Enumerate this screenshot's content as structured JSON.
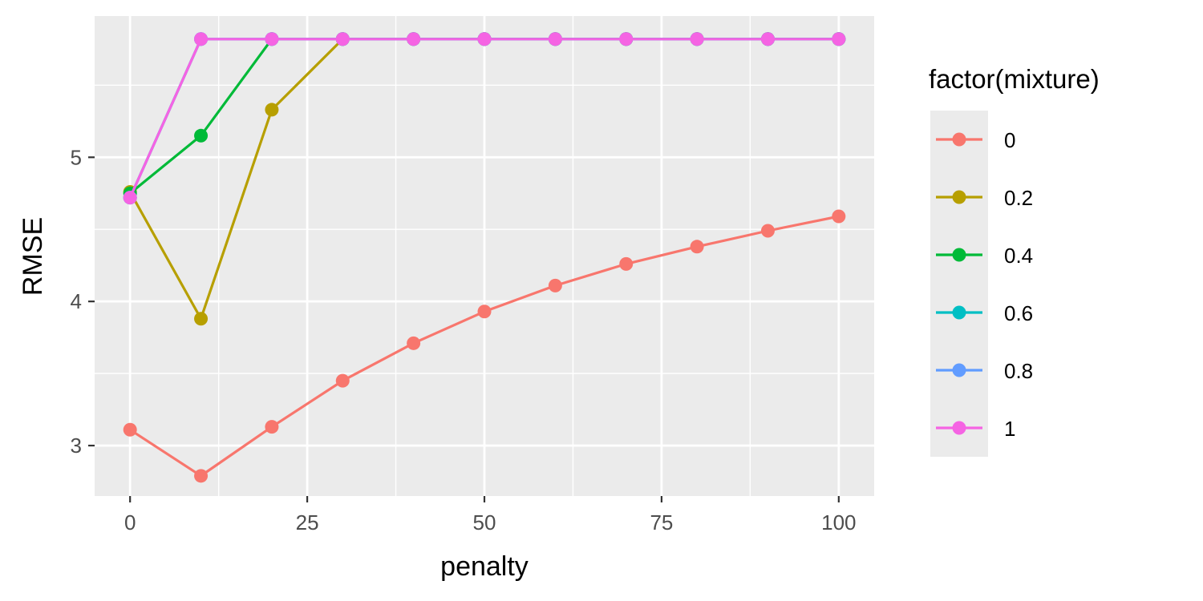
{
  "chart_data": {
    "type": "line",
    "title": "",
    "xlabel": "penalty",
    "ylabel": "RMSE",
    "xlim": [
      -5,
      105
    ],
    "ylim": [
      2.65,
      5.98
    ],
    "x_ticks": [
      0,
      25,
      50,
      75,
      100
    ],
    "x_tick_labels": [
      "0",
      "25",
      "50",
      "75",
      "100"
    ],
    "y_ticks": [
      3,
      4,
      5
    ],
    "y_tick_labels": [
      "3",
      "4",
      "5"
    ],
    "grid": true,
    "legend": {
      "title": "factor(mixture)",
      "position": "right"
    },
    "x": [
      0,
      10,
      20,
      30,
      40,
      50,
      60,
      70,
      80,
      90,
      100
    ],
    "series": [
      {
        "name": "0",
        "color": "#F8766D",
        "values": [
          3.11,
          2.79,
          3.13,
          3.45,
          3.71,
          3.93,
          4.11,
          4.26,
          4.38,
          4.49,
          4.59
        ]
      },
      {
        "name": "0.2",
        "color": "#B79F00",
        "values": [
          4.76,
          3.88,
          5.33,
          5.82,
          5.82,
          5.82,
          5.82,
          5.82,
          5.82,
          5.82,
          5.82
        ]
      },
      {
        "name": "0.4",
        "color": "#00BA38",
        "values": [
          4.75,
          5.15,
          5.82,
          5.82,
          5.82,
          5.82,
          5.82,
          5.82,
          5.82,
          5.82,
          5.82
        ]
      },
      {
        "name": "0.6",
        "color": "#00BFC4",
        "values": [
          4.72,
          5.82,
          5.82,
          5.82,
          5.82,
          5.82,
          5.82,
          5.82,
          5.82,
          5.82,
          5.82
        ]
      },
      {
        "name": "0.8",
        "color": "#619CFF",
        "values": [
          4.72,
          5.82,
          5.82,
          5.82,
          5.82,
          5.82,
          5.82,
          5.82,
          5.82,
          5.82,
          5.82
        ]
      },
      {
        "name": "1",
        "color": "#F564E3",
        "values": [
          4.72,
          5.82,
          5.82,
          5.82,
          5.82,
          5.82,
          5.82,
          5.82,
          5.82,
          5.82,
          5.82
        ]
      }
    ]
  }
}
